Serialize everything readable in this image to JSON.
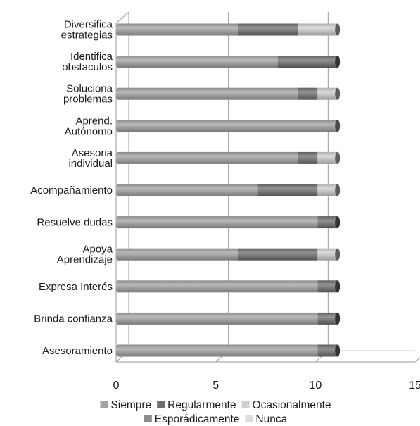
{
  "chart_data": {
    "type": "bar",
    "orientation": "horizontal",
    "stacked": true,
    "style": "3d-cylinder",
    "categories": [
      [
        "Diversifica",
        "estrategias"
      ],
      [
        "Identifica",
        "obstaculos"
      ],
      [
        "Soluciona",
        "problemas"
      ],
      [
        "Aprend.",
        "Autónomo"
      ],
      [
        "Asesoria",
        "individual"
      ],
      [
        "Acompañamiento"
      ],
      [
        "Resuelve dudas"
      ],
      [
        "Apoya",
        "Aprendizaje"
      ],
      [
        "Expresa Interés"
      ],
      [
        "Brinda confianza"
      ],
      [
        "Asesoramiento"
      ]
    ],
    "series": [
      {
        "name": "Siempre",
        "color": "#a3a3a3",
        "values": [
          6,
          8,
          9,
          11,
          9,
          7,
          10,
          6,
          10,
          10,
          10
        ]
      },
      {
        "name": "Regularmente",
        "color": "#6f6f6f",
        "values": [
          3,
          3,
          1,
          0,
          1,
          3,
          1,
          4,
          1,
          1,
          1
        ]
      },
      {
        "name": "Ocasionalmente",
        "color": "#cfcfcf",
        "values": [
          2,
          0,
          1,
          0,
          1,
          1,
          0,
          1,
          0,
          0,
          0
        ]
      },
      {
        "name": "Esporádicamente",
        "color": "#8c8c8c",
        "values": [
          0,
          0,
          0,
          0,
          0,
          0,
          0,
          0,
          0,
          0,
          0
        ]
      },
      {
        "name": "Nunca",
        "color": "#dcdcdc",
        "values": [
          0,
          0,
          0,
          0,
          0,
          0,
          0,
          0,
          0,
          0,
          0
        ]
      }
    ],
    "x_ticks": [
      "0",
      "5",
      "10",
      "15"
    ],
    "xlim": [
      0,
      15
    ],
    "grid": true,
    "legend_position": "bottom"
  }
}
